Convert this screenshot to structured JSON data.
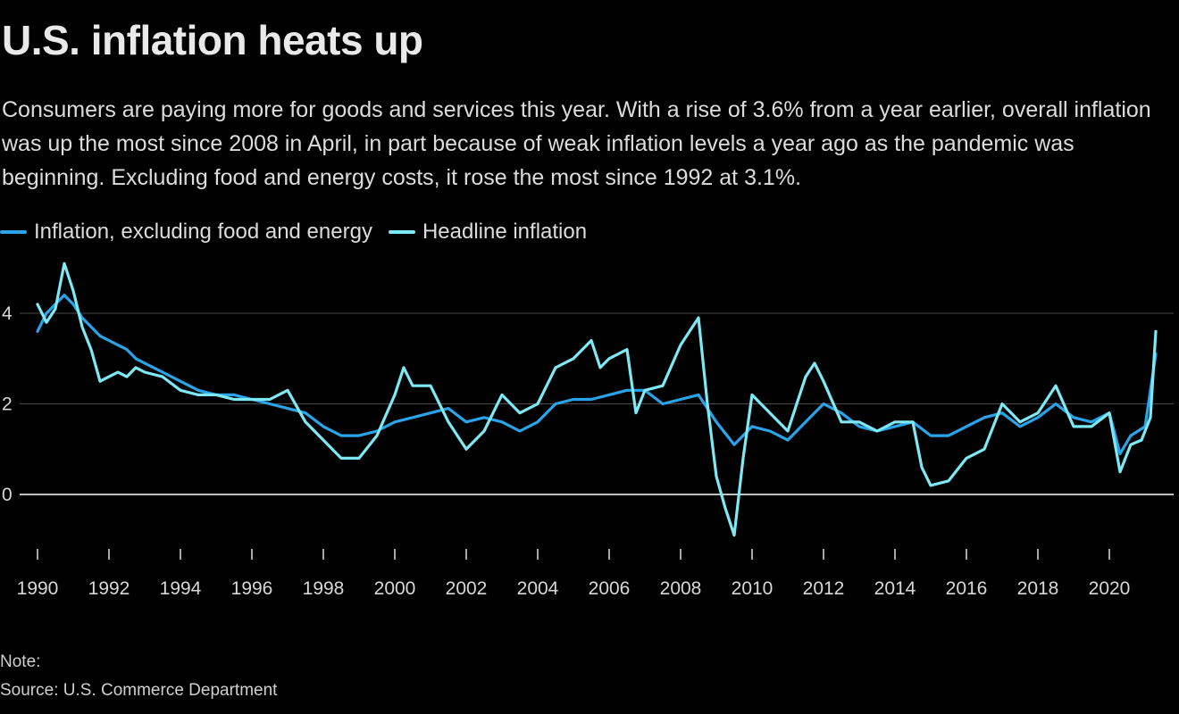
{
  "title": "U.S. inflation heats up",
  "subtitle": "Consumers are paying more for goods and services this year. With a rise of 3.6% from a year earlier, overall inflation was up the most since 2008 in April, in part because of weak inflation levels a year ago as the pandemic was beginning. Excluding food and energy costs, it rose the most since 1992 at 3.1%.",
  "note": "Note:",
  "source": "Source: U.S. Commerce Department",
  "colors": {
    "core": "#2aa3e8",
    "headline": "#7ee8f5",
    "grid": "#4a4a4a",
    "zero": "#ffffff"
  },
  "chart_data": {
    "type": "line",
    "title": "U.S. inflation heats up",
    "xlabel": "",
    "ylabel": "",
    "x_ticks": [
      "1990",
      "1992",
      "1994",
      "1996",
      "1998",
      "2000",
      "2002",
      "2004",
      "2006",
      "2008",
      "2010",
      "2012",
      "2014",
      "2016",
      "2018",
      "2020"
    ],
    "y_ticks": [
      "0",
      "2",
      "4"
    ],
    "xlim": [
      1990,
      2021.35
    ],
    "ylim": [
      -1.3,
      5.4
    ],
    "grid": "horizontal",
    "legend": "top-left",
    "series": [
      {
        "name": "Inflation, excluding food and energy",
        "color_key": "core",
        "points": [
          [
            1990.0,
            3.6
          ],
          [
            1990.25,
            4.0
          ],
          [
            1990.5,
            4.2
          ],
          [
            1990.75,
            4.4
          ],
          [
            1991.0,
            4.2
          ],
          [
            1991.25,
            3.9
          ],
          [
            1991.5,
            3.7
          ],
          [
            1991.75,
            3.5
          ],
          [
            1992.0,
            3.4
          ],
          [
            1992.25,
            3.3
          ],
          [
            1992.5,
            3.2
          ],
          [
            1992.75,
            3.0
          ],
          [
            1993.0,
            2.9
          ],
          [
            1993.5,
            2.7
          ],
          [
            1994.0,
            2.5
          ],
          [
            1994.5,
            2.3
          ],
          [
            1995.0,
            2.2
          ],
          [
            1995.5,
            2.2
          ],
          [
            1996.0,
            2.1
          ],
          [
            1996.5,
            2.0
          ],
          [
            1997.0,
            1.9
          ],
          [
            1997.5,
            1.8
          ],
          [
            1998.0,
            1.5
          ],
          [
            1998.5,
            1.3
          ],
          [
            1999.0,
            1.3
          ],
          [
            1999.5,
            1.4
          ],
          [
            2000.0,
            1.6
          ],
          [
            2000.5,
            1.7
          ],
          [
            2001.0,
            1.8
          ],
          [
            2001.5,
            1.9
          ],
          [
            2002.0,
            1.6
          ],
          [
            2002.5,
            1.7
          ],
          [
            2003.0,
            1.6
          ],
          [
            2003.5,
            1.4
          ],
          [
            2004.0,
            1.6
          ],
          [
            2004.5,
            2.0
          ],
          [
            2005.0,
            2.1
          ],
          [
            2005.5,
            2.1
          ],
          [
            2006.0,
            2.2
          ],
          [
            2006.5,
            2.3
          ],
          [
            2007.0,
            2.3
          ],
          [
            2007.5,
            2.0
          ],
          [
            2008.0,
            2.1
          ],
          [
            2008.5,
            2.2
          ],
          [
            2009.0,
            1.6
          ],
          [
            2009.5,
            1.1
          ],
          [
            2010.0,
            1.5
          ],
          [
            2010.5,
            1.4
          ],
          [
            2011.0,
            1.2
          ],
          [
            2011.5,
            1.6
          ],
          [
            2012.0,
            2.0
          ],
          [
            2012.5,
            1.8
          ],
          [
            2013.0,
            1.5
          ],
          [
            2013.5,
            1.4
          ],
          [
            2014.0,
            1.5
          ],
          [
            2014.5,
            1.6
          ],
          [
            2015.0,
            1.3
          ],
          [
            2015.5,
            1.3
          ],
          [
            2016.0,
            1.5
          ],
          [
            2016.5,
            1.7
          ],
          [
            2017.0,
            1.8
          ],
          [
            2017.5,
            1.5
          ],
          [
            2018.0,
            1.7
          ],
          [
            2018.5,
            2.0
          ],
          [
            2019.0,
            1.7
          ],
          [
            2019.5,
            1.6
          ],
          [
            2020.0,
            1.8
          ],
          [
            2020.3,
            0.9
          ],
          [
            2020.6,
            1.3
          ],
          [
            2021.0,
            1.5
          ],
          [
            2021.3,
            3.1
          ]
        ]
      },
      {
        "name": "Headline inflation",
        "color_key": "headline",
        "points": [
          [
            1990.0,
            4.2
          ],
          [
            1990.25,
            3.8
          ],
          [
            1990.5,
            4.1
          ],
          [
            1990.75,
            5.1
          ],
          [
            1991.0,
            4.5
          ],
          [
            1991.25,
            3.7
          ],
          [
            1991.5,
            3.2
          ],
          [
            1991.75,
            2.5
          ],
          [
            1992.0,
            2.6
          ],
          [
            1992.25,
            2.7
          ],
          [
            1992.5,
            2.6
          ],
          [
            1992.75,
            2.8
          ],
          [
            1993.0,
            2.7
          ],
          [
            1993.5,
            2.6
          ],
          [
            1994.0,
            2.3
          ],
          [
            1994.5,
            2.2
          ],
          [
            1995.0,
            2.2
          ],
          [
            1995.5,
            2.1
          ],
          [
            1996.0,
            2.1
          ],
          [
            1996.5,
            2.1
          ],
          [
            1997.0,
            2.3
          ],
          [
            1997.5,
            1.6
          ],
          [
            1998.0,
            1.2
          ],
          [
            1998.5,
            0.8
          ],
          [
            1999.0,
            0.8
          ],
          [
            1999.5,
            1.3
          ],
          [
            2000.0,
            2.2
          ],
          [
            2000.25,
            2.8
          ],
          [
            2000.5,
            2.4
          ],
          [
            2001.0,
            2.4
          ],
          [
            2001.5,
            1.6
          ],
          [
            2002.0,
            1.0
          ],
          [
            2002.5,
            1.4
          ],
          [
            2003.0,
            2.2
          ],
          [
            2003.5,
            1.8
          ],
          [
            2004.0,
            2.0
          ],
          [
            2004.5,
            2.8
          ],
          [
            2005.0,
            3.0
          ],
          [
            2005.5,
            3.4
          ],
          [
            2005.75,
            2.8
          ],
          [
            2006.0,
            3.0
          ],
          [
            2006.5,
            3.2
          ],
          [
            2006.75,
            1.8
          ],
          [
            2007.0,
            2.3
          ],
          [
            2007.5,
            2.4
          ],
          [
            2008.0,
            3.3
          ],
          [
            2008.25,
            3.6
          ],
          [
            2008.5,
            3.9
          ],
          [
            2008.75,
            2.0
          ],
          [
            2009.0,
            0.4
          ],
          [
            2009.25,
            -0.3
          ],
          [
            2009.5,
            -0.9
          ],
          [
            2009.75,
            0.8
          ],
          [
            2010.0,
            2.2
          ],
          [
            2010.5,
            1.8
          ],
          [
            2011.0,
            1.4
          ],
          [
            2011.5,
            2.6
          ],
          [
            2011.75,
            2.9
          ],
          [
            2012.0,
            2.5
          ],
          [
            2012.5,
            1.6
          ],
          [
            2013.0,
            1.6
          ],
          [
            2013.5,
            1.4
          ],
          [
            2014.0,
            1.6
          ],
          [
            2014.5,
            1.6
          ],
          [
            2014.75,
            0.6
          ],
          [
            2015.0,
            0.2
          ],
          [
            2015.5,
            0.3
          ],
          [
            2016.0,
            0.8
          ],
          [
            2016.5,
            1.0
          ],
          [
            2017.0,
            2.0
          ],
          [
            2017.5,
            1.6
          ],
          [
            2018.0,
            1.8
          ],
          [
            2018.5,
            2.4
          ],
          [
            2019.0,
            1.5
          ],
          [
            2019.5,
            1.5
          ],
          [
            2020.0,
            1.8
          ],
          [
            2020.3,
            0.5
          ],
          [
            2020.6,
            1.1
          ],
          [
            2020.9,
            1.2
          ],
          [
            2021.15,
            1.7
          ],
          [
            2021.3,
            3.6
          ]
        ]
      }
    ]
  }
}
